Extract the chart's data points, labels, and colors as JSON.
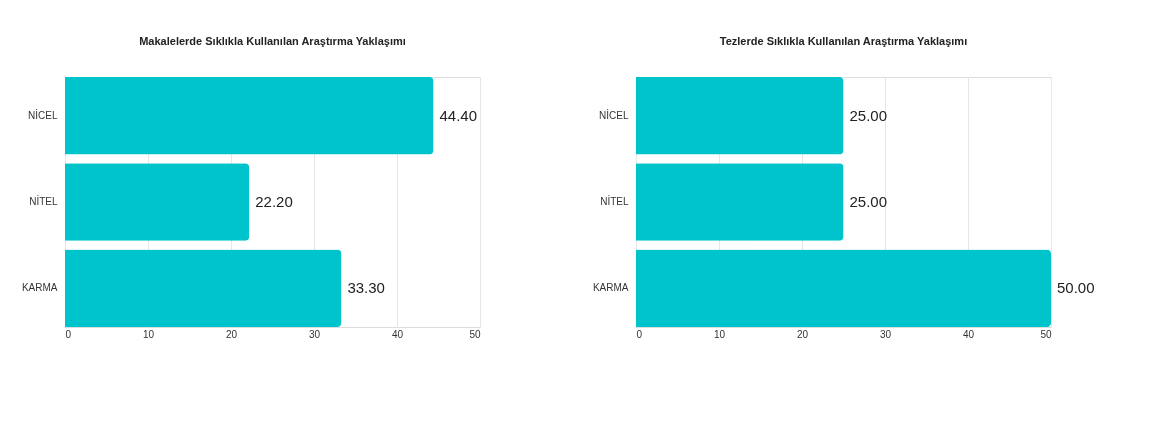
{
  "chart_data": [
    {
      "type": "bar",
      "orientation": "horizontal",
      "title": "Makalelerde Sıklıkla Kullanılan Araştırma Yaklaşımı",
      "categories": [
        "NİCEL",
        "NİTEL",
        "KARMA"
      ],
      "values": [
        44.4,
        22.2,
        33.3
      ],
      "value_labels": [
        "44.40",
        "22.20",
        "33.30"
      ],
      "color": "#00c4cc",
      "xlim": [
        0,
        50
      ],
      "xticks": [
        0,
        10,
        20,
        30,
        40,
        50
      ],
      "grid": "x"
    },
    {
      "type": "bar",
      "orientation": "horizontal",
      "title": "Tezlerde Sıklıkla Kullanılan Araştırma Yaklaşımı",
      "categories": [
        "NİCEL",
        "NİTEL",
        "KARMA"
      ],
      "values": [
        25.0,
        25.0,
        50.0
      ],
      "value_labels": [
        "25.00",
        "25.00",
        "50.00"
      ],
      "color": "#00c4cc",
      "xlim": [
        0,
        50
      ],
      "xticks": [
        0,
        10,
        20,
        30,
        40,
        50
      ],
      "grid": "x"
    }
  ]
}
